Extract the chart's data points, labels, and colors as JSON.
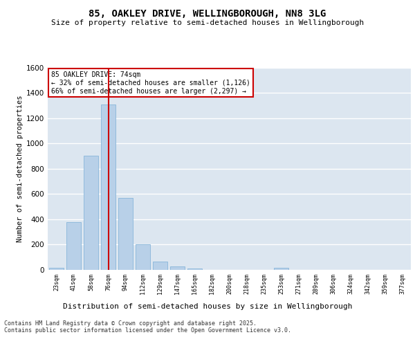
{
  "title": "85, OAKLEY DRIVE, WELLINGBOROUGH, NN8 3LG",
  "subtitle": "Size of property relative to semi-detached houses in Wellingborough",
  "xlabel": "Distribution of semi-detached houses by size in Wellingborough",
  "ylabel": "Number of semi-detached properties",
  "categories": [
    "23sqm",
    "41sqm",
    "58sqm",
    "76sqm",
    "94sqm",
    "112sqm",
    "129sqm",
    "147sqm",
    "165sqm",
    "182sqm",
    "200sqm",
    "218sqm",
    "235sqm",
    "253sqm",
    "271sqm",
    "289sqm",
    "306sqm",
    "324sqm",
    "342sqm",
    "359sqm",
    "377sqm"
  ],
  "values": [
    15,
    380,
    900,
    1310,
    570,
    200,
    65,
    25,
    10,
    0,
    0,
    0,
    0,
    15,
    0,
    0,
    0,
    0,
    0,
    0,
    0
  ],
  "bar_color": "#b8d0e8",
  "bar_edge_color": "#7aaed6",
  "property_line_x": 3,
  "annotation_title": "85 OAKLEY DRIVE: 74sqm",
  "annotation_line1": "← 32% of semi-detached houses are smaller (1,126)",
  "annotation_line2": "66% of semi-detached houses are larger (2,297) →",
  "annotation_box_color": "#cc0000",
  "ylim": [
    0,
    1600
  ],
  "yticks": [
    0,
    200,
    400,
    600,
    800,
    1000,
    1200,
    1400,
    1600
  ],
  "background_color": "#dce6f0",
  "grid_color": "#ffffff",
  "footer_line1": "Contains HM Land Registry data © Crown copyright and database right 2025.",
  "footer_line2": "Contains public sector information licensed under the Open Government Licence v3.0.",
  "title_fontsize": 10,
  "subtitle_fontsize": 8,
  "annotation_fontsize": 7,
  "footer_fontsize": 6,
  "ylabel_fontsize": 7.5,
  "xlabel_fontsize": 8
}
